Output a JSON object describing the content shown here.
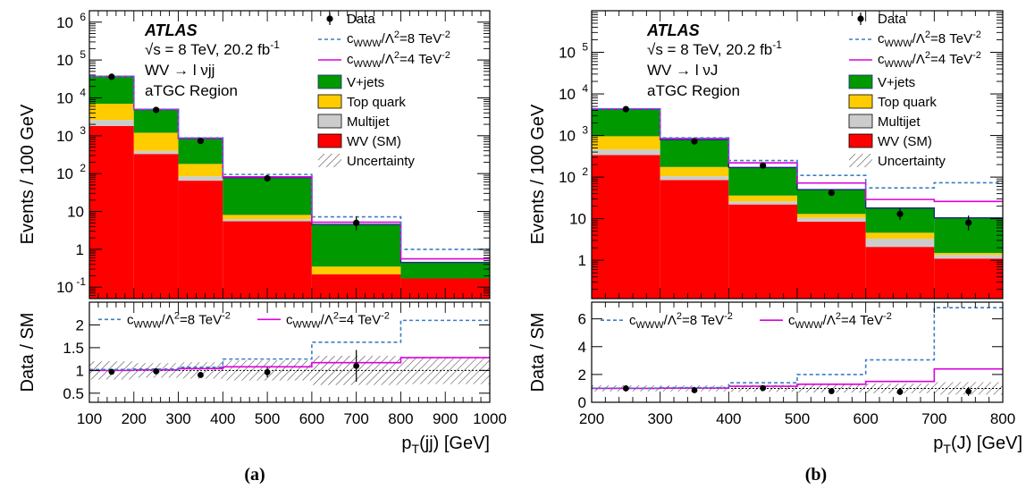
{
  "panels": [
    {
      "id": "a",
      "caption": "(a)",
      "atlas_label": "ATLAS",
      "energy_label": "√s = 8 TeV, 20.2 fb",
      "energy_sup": "-1",
      "channel_label": "WV → l νjj",
      "region_label": "aTGC Region",
      "ylabel_main": "Events / 100 GeV",
      "ylabel_ratio": "Data / SM",
      "xlabel": "p",
      "xlabel_sub": "T",
      "xlabel_tail": "(jj) [GeV]"
    },
    {
      "id": "b",
      "caption": "(b)",
      "atlas_label": "ATLAS",
      "energy_label": "√s = 8 TeV, 20.2 fb",
      "energy_sup": "-1",
      "channel_label": "WV → l νJ",
      "region_label": "aTGC Region",
      "ylabel_main": "Events / 100 GeV",
      "ylabel_ratio": "Data / SM",
      "xlabel": "p",
      "xlabel_sub": "T",
      "xlabel_tail": "(J) [GeV]"
    }
  ],
  "legend": {
    "data": "Data",
    "c8_pre": "c",
    "c8_sub": "WWW",
    "c8_mid": "/Λ",
    "c8_sup": "2",
    "c8_post": "=8 TeV",
    "c8_sup2": "-2",
    "c4_post": "=4 TeV",
    "vjets": "V+jets",
    "top": "Top quark",
    "multijet": "Multijet",
    "wv": "WV (SM)",
    "unc": "Uncertainty"
  },
  "colors": {
    "wv": "#ff0000",
    "multijet": "#cccccc",
    "top": "#ffcc00",
    "vjets": "#009900",
    "c8": "#3b7dc4",
    "c4": "#dd00dd",
    "total": "#1f2a80"
  },
  "chart_data": [
    {
      "type": "bar",
      "panel": "a",
      "log_y": true,
      "xlim": [
        100,
        1000
      ],
      "ylim": [
        0.05,
        2000000
      ],
      "ratio_ylim": [
        0.3,
        2.5
      ],
      "bin_edges": [
        100,
        200,
        300,
        400,
        600,
        800,
        1000
      ],
      "x_ticks": [
        100,
        200,
        300,
        400,
        500,
        600,
        700,
        800,
        900,
        1000
      ],
      "y_ticks": [
        {
          "v": 0.1,
          "b": "10",
          "s": "-1"
        },
        {
          "v": 1,
          "b": "1",
          "s": ""
        },
        {
          "v": 10,
          "b": "10",
          "s": ""
        },
        {
          "v": 100,
          "b": "10",
          "s": "2"
        },
        {
          "v": 1000,
          "b": "10",
          "s": "3"
        },
        {
          "v": 10000,
          "b": "10",
          "s": "4"
        },
        {
          "v": 100000,
          "b": "10",
          "s": "5"
        },
        {
          "v": 1000000,
          "b": "10",
          "s": "6"
        }
      ],
      "ratio_ticks": [
        0.5,
        1,
        1.5,
        2
      ],
      "series": [
        {
          "name": "WV (SM)",
          "values": [
            1800,
            330,
            65,
            5.5,
            0.22,
            0.17
          ]
        },
        {
          "name": "Multijet",
          "values": [
            800,
            70,
            20,
            0.8,
            0.0,
            0.0
          ]
        },
        {
          "name": "Top quark",
          "values": [
            4400,
            800,
            95,
            1.8,
            0.13,
            0.0
          ]
        },
        {
          "name": "V+jets",
          "values": [
            30000,
            3700,
            660,
            70,
            4.2,
            0.28
          ]
        }
      ],
      "c8": [
        37000,
        5000,
        880,
        95,
        7.2,
        1.0
      ],
      "c4": [
        37000,
        4950,
        860,
        82,
        5.2,
        0.56
      ],
      "data": {
        "x": [
          150,
          250,
          350,
          500,
          700
        ],
        "y": [
          36000,
          4800,
          730,
          75,
          5.0
        ],
        "err_lo": [
          190,
          70,
          27,
          8.7,
          1.8
        ],
        "err_hi": [
          190,
          70,
          27,
          8.7,
          2.4
        ]
      },
      "ratio_c8": [
        1.02,
        1.03,
        1.07,
        1.25,
        1.62,
        2.1
      ],
      "ratio_c4": [
        1.0,
        1.01,
        1.04,
        1.08,
        1.17,
        1.28
      ],
      "ratio_unc": [
        0.2,
        0.16,
        0.18,
        0.22,
        0.32,
        0.3
      ],
      "ratio_data": {
        "x": [
          150,
          250,
          350,
          500,
          700
        ],
        "y": [
          0.97,
          0.98,
          0.9,
          0.96,
          1.1
        ],
        "err": [
          0.02,
          0.02,
          0.04,
          0.11,
          0.35
        ]
      },
      "ratio_legend_y": 2.12
    },
    {
      "type": "bar",
      "panel": "b",
      "log_y": true,
      "xlim": [
        200,
        800
      ],
      "ylim": [
        0.12,
        1000000
      ],
      "ratio_ylim": [
        0,
        7.2
      ],
      "bin_edges": [
        200,
        300,
        400,
        500,
        600,
        700,
        800
      ],
      "x_ticks": [
        200,
        300,
        400,
        500,
        600,
        700,
        800
      ],
      "y_ticks": [
        {
          "v": 1,
          "b": "1",
          "s": ""
        },
        {
          "v": 10,
          "b": "10",
          "s": ""
        },
        {
          "v": 100,
          "b": "10",
          "s": "2"
        },
        {
          "v": 1000,
          "b": "10",
          "s": "3"
        },
        {
          "v": 10000,
          "b": "10",
          "s": "4"
        },
        {
          "v": 100000,
          "b": "10",
          "s": "5"
        }
      ],
      "ratio_ticks": [
        0,
        2,
        4,
        6
      ],
      "series": [
        {
          "name": "WV (SM)",
          "values": [
            340,
            85,
            22,
            8.5,
            2.1,
            1.1
          ]
        },
        {
          "name": "Multijet",
          "values": [
            120,
            20,
            4,
            2,
            1.2,
            0.25
          ]
        },
        {
          "name": "Top quark",
          "values": [
            500,
            70,
            10,
            2.5,
            1.3,
            0.15
          ]
        },
        {
          "name": "V+jets",
          "values": [
            3300,
            615,
            134,
            37,
            13.4,
            9
          ]
        }
      ],
      "c8": [
        4400,
        880,
        250,
        110,
        55,
        73
      ],
      "c4": [
        4350,
        850,
        220,
        72,
        29,
        26
      ],
      "data": {
        "x": [
          250,
          350,
          450,
          550,
          650,
          750
        ],
        "y": [
          4300,
          720,
          190,
          42,
          13,
          8
        ],
        "err_lo": [
          66,
          27,
          14,
          6.5,
          3.6,
          2.8
        ],
        "err_hi": [
          66,
          27,
          14,
          6.5,
          4.5,
          3.9
        ]
      },
      "ratio_c8": [
        1.02,
        1.06,
        1.4,
        2.0,
        3.05,
        6.8
      ],
      "ratio_c4": [
        1.0,
        1.02,
        1.15,
        1.3,
        1.5,
        2.4
      ],
      "ratio_unc": [
        0.22,
        0.22,
        0.25,
        0.3,
        0.35,
        0.45
      ],
      "ratio_data": {
        "x": [
          250,
          350,
          450,
          550,
          650,
          750
        ],
        "y": [
          1.0,
          0.87,
          1.02,
          0.8,
          0.75,
          0.78
        ],
        "err": [
          0.02,
          0.04,
          0.08,
          0.14,
          0.22,
          0.32
        ]
      },
      "ratio_legend_y": 5.9
    }
  ]
}
